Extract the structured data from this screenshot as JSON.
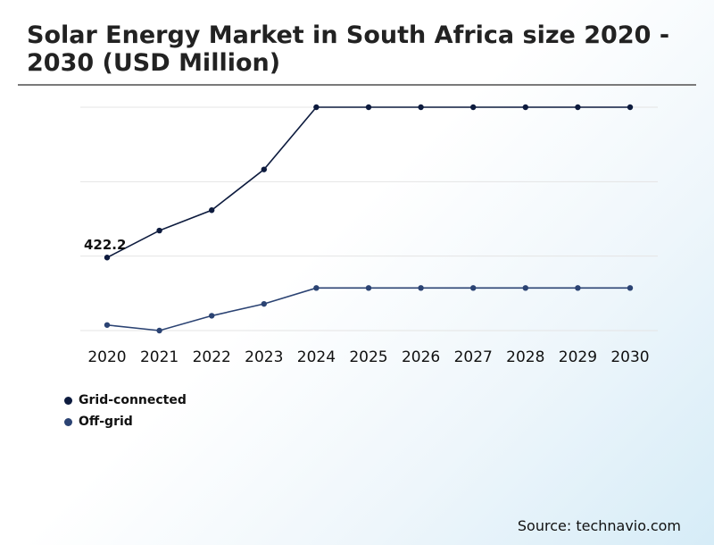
{
  "title": "Solar Energy Market in South Africa size 2020 - 2030 (USD Million)",
  "source": "Source: technavio.com",
  "colors": {
    "grid_connected": "#0d1b3e",
    "off_grid": "#2b4373",
    "gridline": "#e4e4e4"
  },
  "chart_data": {
    "type": "line",
    "title": "Solar Energy Market in South Africa size 2020 - 2030 (USD Million)",
    "x": [
      "2020",
      "2021",
      "2022",
      "2023",
      "2024",
      "2025",
      "2026",
      "2027",
      "2028",
      "2029",
      "2030"
    ],
    "series": [
      {
        "name": "Grid-connected",
        "values": [
          422.2,
          495,
          550,
          660,
          828,
          828,
          828,
          828,
          828,
          828,
          828
        ]
      },
      {
        "name": "Off-grid",
        "values": [
          240,
          225,
          265,
          297,
          340,
          340,
          340,
          340,
          340,
          340,
          340
        ]
      }
    ],
    "data_labels": [
      {
        "series": 0,
        "index": 0,
        "text": "422.2"
      }
    ],
    "ylim": [
      225,
      828
    ],
    "y_ticks_drawn": [
      225,
      426,
      627,
      828
    ],
    "y_tick_labels_visible": false,
    "grid": true,
    "legend_position": "bottom-left"
  }
}
